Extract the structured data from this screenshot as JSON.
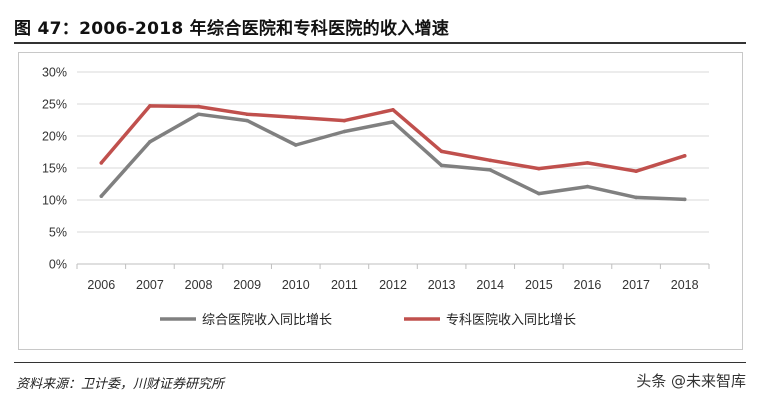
{
  "title": "图 47：2006-2018 年综合医院和专科医院的收入增速",
  "source": "资料来源：卫计委，川财证券研究所",
  "watermark": "头条 @未来智库",
  "colors": {
    "series_general": "#808080",
    "series_specialty": "#C0504D",
    "grid": "#d9d9d9",
    "axis": "#bfbfbf"
  },
  "chart_data": {
    "type": "line",
    "title": "",
    "xlabel": "",
    "ylabel": "",
    "categories": [
      "2006",
      "2007",
      "2008",
      "2009",
      "2010",
      "2011",
      "2012",
      "2013",
      "2014",
      "2015",
      "2016",
      "2017",
      "2018"
    ],
    "y_ticks": [
      "0%",
      "5%",
      "10%",
      "15%",
      "20%",
      "25%",
      "30%"
    ],
    "ylim": [
      0,
      30
    ],
    "grid": true,
    "legend_position": "bottom",
    "series": [
      {
        "name": "综合医院收入同比增长",
        "color": "#808080",
        "values": [
          10.6,
          19.1,
          23.4,
          22.4,
          18.6,
          20.7,
          22.2,
          15.4,
          14.7,
          11.0,
          12.1,
          10.4,
          10.1
        ]
      },
      {
        "name": "专科医院收入同比增长",
        "color": "#C0504D",
        "values": [
          15.8,
          24.7,
          24.6,
          23.4,
          22.9,
          22.4,
          24.1,
          17.6,
          16.2,
          14.9,
          15.8,
          14.5,
          16.9
        ]
      }
    ]
  }
}
